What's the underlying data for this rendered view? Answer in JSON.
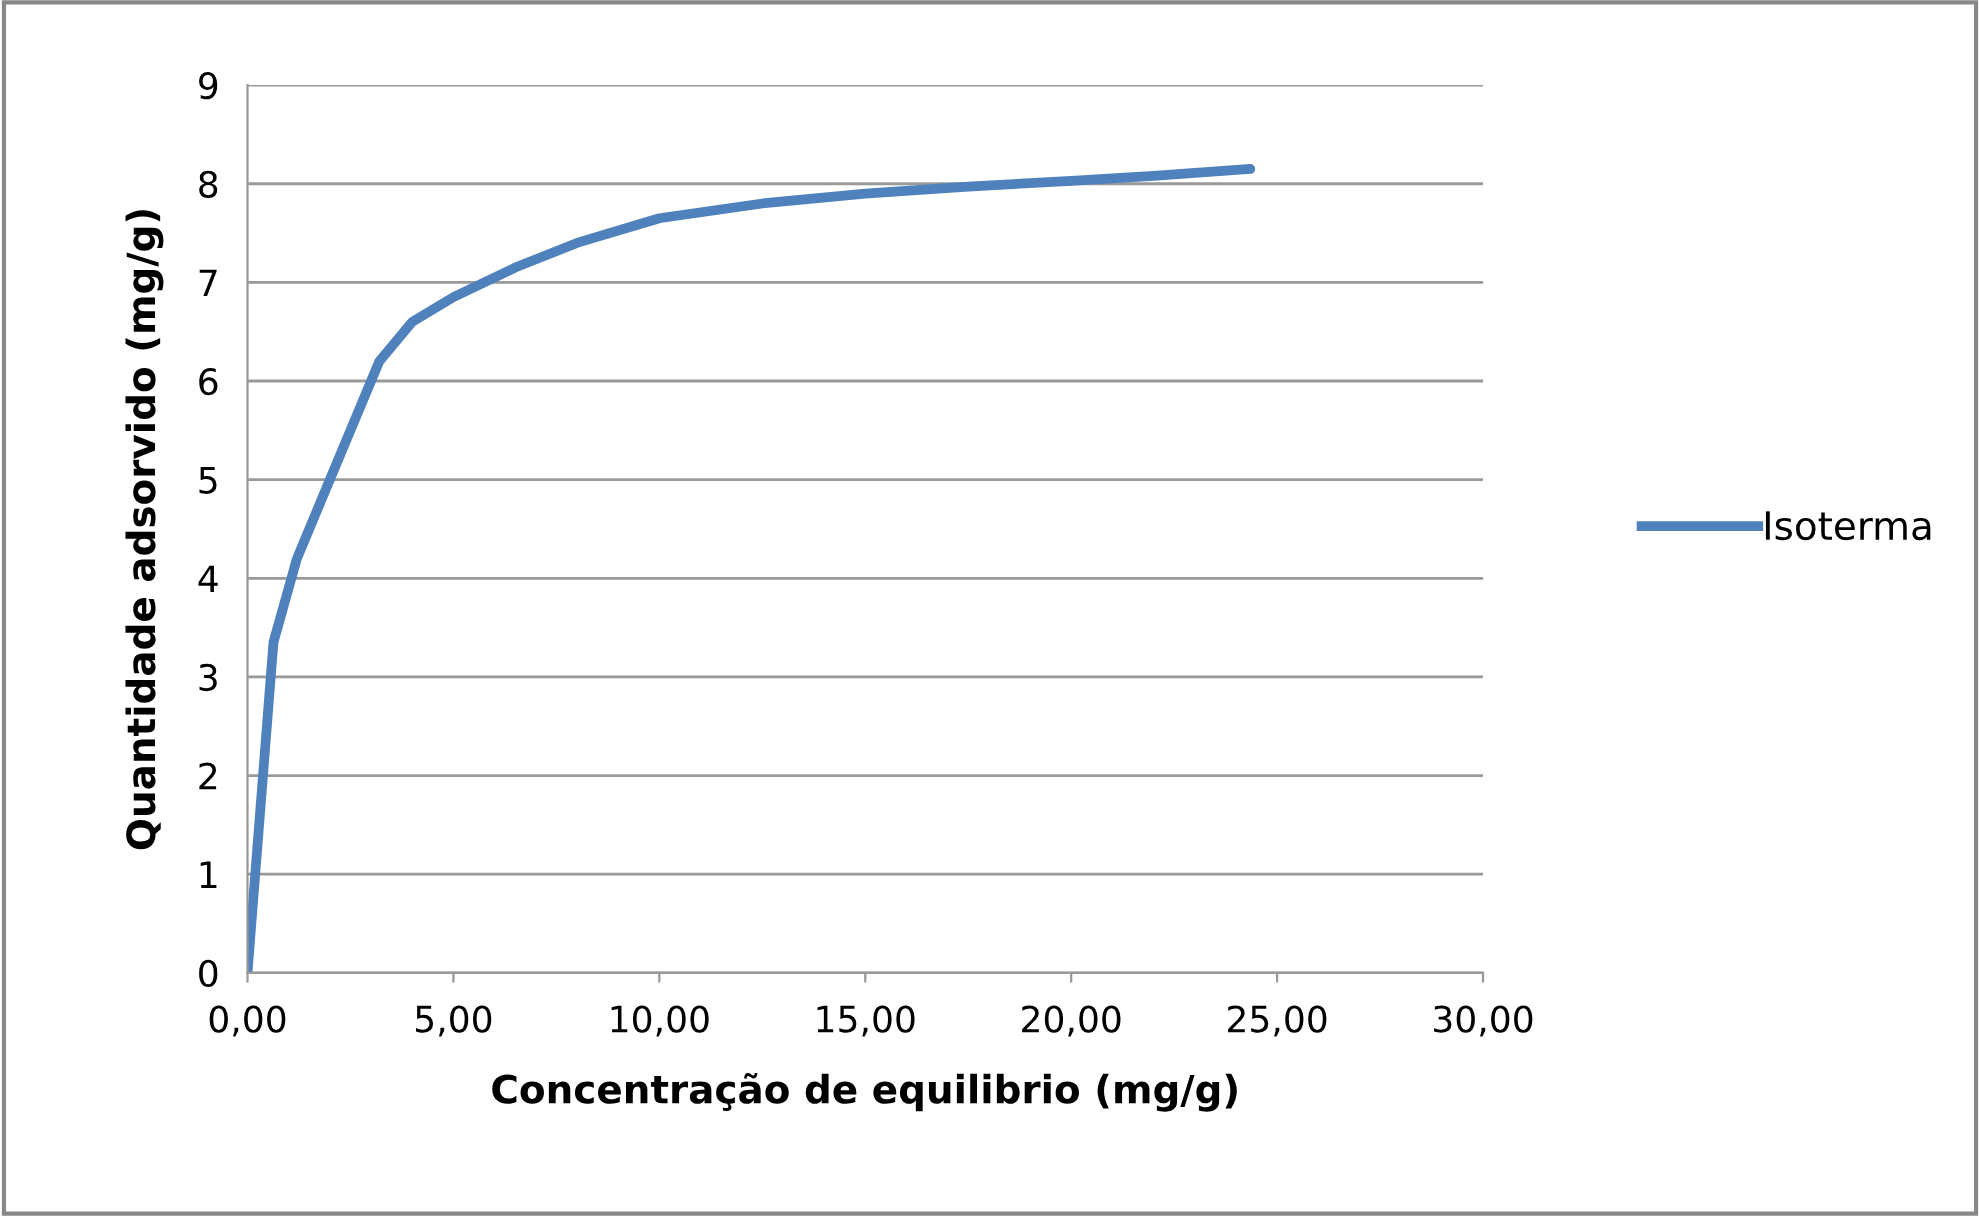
{
  "chart_data": {
    "type": "line",
    "xlabel": "Concentração de equilibrio (mg/g)",
    "ylabel": "Quantidade adsorvido (mg/g)",
    "series": [
      {
        "name": "Isoterma",
        "color": "#4f81bd",
        "x": [
          0,
          0.63,
          1.2,
          2.0,
          2.7,
          3.2,
          4.0,
          5.0,
          6.5,
          8.0,
          10.0,
          12.5,
          15.0,
          17.5,
          20.0,
          22.0,
          24.35
        ],
        "values": [
          0,
          3.35,
          4.2,
          5.0,
          5.7,
          6.2,
          6.6,
          6.85,
          7.15,
          7.4,
          7.65,
          7.8,
          7.9,
          7.97,
          8.03,
          8.08,
          8.15
        ]
      }
    ],
    "xlim": [
      0,
      30
    ],
    "xticks": [
      {
        "value": 0,
        "label": "0,00"
      },
      {
        "value": 5,
        "label": "5,00"
      },
      {
        "value": 10,
        "label": "10,00"
      },
      {
        "value": 15,
        "label": "15,00"
      },
      {
        "value": 20,
        "label": "20,00"
      },
      {
        "value": 25,
        "label": "25,00"
      },
      {
        "value": 30,
        "label": "30,00"
      }
    ],
    "ylim": [
      0,
      9
    ],
    "yticks": [
      0,
      1,
      2,
      3,
      4,
      5,
      6,
      7,
      8,
      9
    ],
    "grid": "y",
    "legend": "right",
    "marker": "none",
    "line_style": "solid"
  }
}
